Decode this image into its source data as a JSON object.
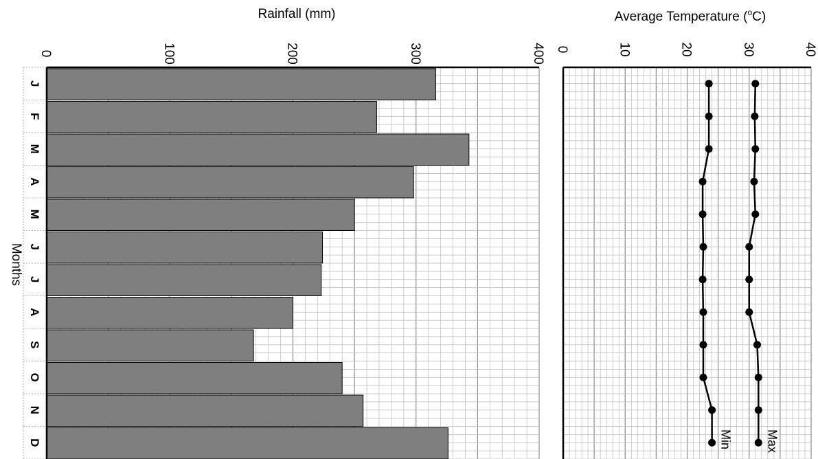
{
  "months_axis_label": "Months",
  "months": [
    "J",
    "F",
    "M",
    "A",
    "M",
    "J",
    "J",
    "A",
    "S",
    "O",
    "N",
    "D"
  ],
  "chart_data": [
    {
      "type": "bar",
      "title": "Rainfall (mm)",
      "categories": [
        "J",
        "F",
        "M",
        "A",
        "M",
        "J",
        "J",
        "A",
        "S",
        "O",
        "N",
        "D"
      ],
      "values": [
        316,
        268,
        343,
        298,
        250,
        224,
        223,
        200,
        168,
        240,
        257,
        326
      ],
      "xlabel": "Months",
      "ylabel": "Rainfall (mm)",
      "ylim": [
        0,
        400
      ],
      "ticks": [
        0,
        100,
        200,
        300,
        400
      ],
      "tick_labels": [
        "0",
        "100",
        "200",
        "300",
        "400"
      ],
      "grid": true,
      "colors": {
        "bar": "#7f7f7f",
        "grid": "#b8b8b8",
        "grid_major": "#8c8c8c"
      }
    },
    {
      "type": "line",
      "title": "Average Temperature (°C)",
      "title_main": "Average Temperature (",
      "title_degree": "o",
      "title_unit": "C)",
      "categories": [
        "J",
        "F",
        "M",
        "A",
        "M",
        "J",
        "J",
        "A",
        "S",
        "O",
        "N",
        "D"
      ],
      "series": [
        {
          "name": "Min",
          "values": [
            23.5,
            23.5,
            23.5,
            22.5,
            22.5,
            22.6,
            22.5,
            22.6,
            22.6,
            22.6,
            24,
            24
          ]
        },
        {
          "name": "Max",
          "values": [
            31,
            30.9,
            31,
            30.8,
            31,
            30,
            30,
            30,
            31.3,
            31.5,
            31.5,
            31.5
          ]
        }
      ],
      "xlabel": "Months",
      "ylabel": "Average Temperature (°C)",
      "ylim": [
        0,
        40
      ],
      "ticks": [
        0,
        10,
        20,
        30,
        40
      ],
      "tick_labels": [
        "0",
        "10",
        "20",
        "30",
        "40"
      ],
      "grid": true,
      "colors": {
        "line": "#000000",
        "grid": "#b8b8b8",
        "grid_major": "#8c8c8c"
      }
    }
  ]
}
